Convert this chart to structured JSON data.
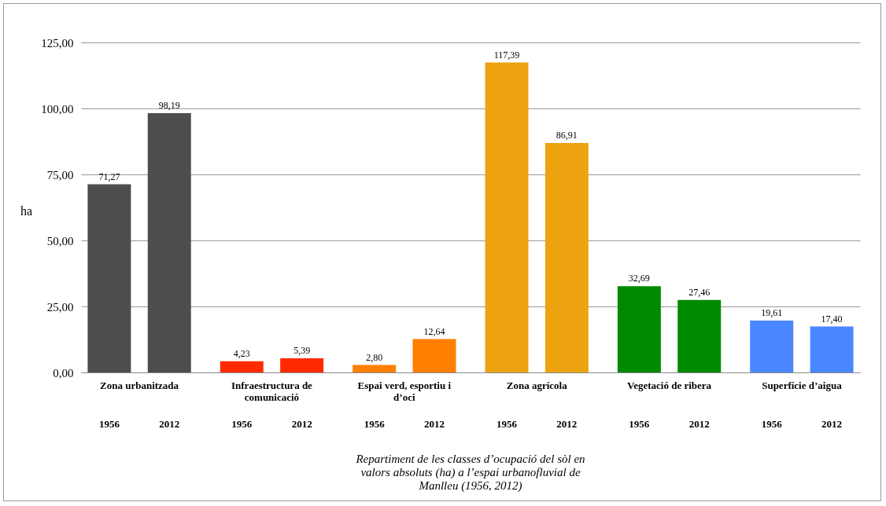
{
  "chart_data": {
    "type": "bar",
    "title": "Repartiment de les classes d’ocupació del sòl en valors absoluts (ha) a l’espai urbanofluvial de Manlleu (1956, 2012)",
    "ylabel": "ha",
    "categories": [
      "1956",
      "2012",
      "1956",
      "2012",
      "1956",
      "2012",
      "1956",
      "2012",
      "1956",
      "2012",
      "1956",
      "2012"
    ],
    "values": [
      71.27,
      98.19,
      4.23,
      5.39,
      2.8,
      12.64,
      117.39,
      86.91,
      32.69,
      27.46,
      19.61,
      17.4
    ],
    "colors": [
      "#4d4d4d",
      "#4d4d4d",
      "#ff2a00",
      "#ff2a00",
      "#ff7f00",
      "#ff7f00",
      "#eda20f",
      "#eda20f",
      "#008a00",
      "#008a00",
      "#4a86ff",
      "#4a86ff"
    ],
    "value_labels": [
      "71,27",
      "98,19",
      "4,23",
      "5,39",
      "2,80",
      "12,64",
      "117,39",
      "86,91",
      "32,69",
      "27,46",
      "19,61",
      "17,40"
    ],
    "annotations": [
      "Zona urbanitzada",
      "Infraestructura de comunicació",
      "Espai verd, esportiu i d’oci",
      "Zona agrícola",
      "Vegetació de ribera",
      "Superfície d’aigua"
    ],
    "ylim": [
      0,
      125
    ],
    "yticks": [
      {
        "value": 0,
        "label": "0,00"
      },
      {
        "value": 25,
        "label": "25,00"
      },
      {
        "value": 50,
        "label": "50,00"
      },
      {
        "value": 75,
        "label": "75,00"
      },
      {
        "value": 100,
        "label": "100,00"
      },
      {
        "value": 125,
        "label": "125,00"
      }
    ],
    "grid": "y"
  }
}
